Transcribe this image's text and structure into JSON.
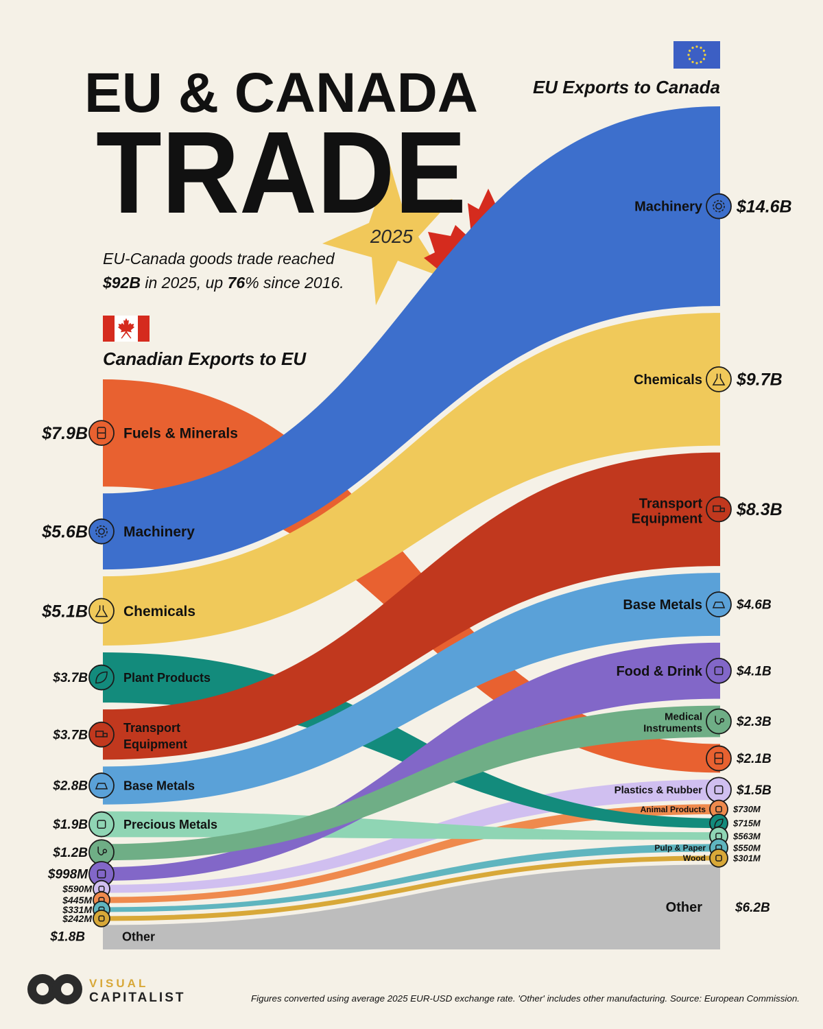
{
  "header": {
    "title_line1": "EU & CANADA",
    "title_line2": "TRADE",
    "year": "2025",
    "subtitle_line1": "EU-Canada goods trade reached",
    "subtitle_bold1": "$92B",
    "subtitle_mid": " in 2025, up ",
    "subtitle_bold2": "76",
    "subtitle_end": "% since 2016."
  },
  "left_heading": "Canadian Exports to EU",
  "right_heading": "EU Exports to Canada",
  "colors": {
    "background": "#f5f1e7",
    "fuels": "#e86130",
    "machinery": "#3d6fcc",
    "chemicals": "#f0c95a",
    "plant": "#138b7c",
    "transport": "#c1381e",
    "base_metals": "#5aa1d8",
    "precious_metals": "#8fd5b4",
    "medical": "#6fae86",
    "food": "#8267c8",
    "plastics": "#d0bff0",
    "animal": "#ef8a4d",
    "pulp": "#5fb5bf",
    "wood": "#d8a838",
    "other": "#bdbdbd",
    "eu_flag": "#3c5fc4",
    "ca_flag": "#d52b1e",
    "star": "#f1c85a"
  },
  "chart_data": {
    "type": "sankey",
    "left_label": "Canadian Exports to EU",
    "right_label": "EU Exports to Canada",
    "flows": [
      {
        "category": "Fuels & Minerals",
        "left_label": "Fuels & Minerals",
        "left_display": "$7.9B",
        "right_label": "",
        "right_display": "$2.1B",
        "left_value": 7.9,
        "right_value": 2.1,
        "color_key": "fuels",
        "icon": "oil-barrel-icon"
      },
      {
        "category": "Machinery",
        "left_label": "Machinery",
        "left_display": "$5.6B",
        "right_label": "Machinery",
        "right_display": "$14.6B",
        "left_value": 5.6,
        "right_value": 14.6,
        "color_key": "machinery",
        "icon": "gear-icon"
      },
      {
        "category": "Chemicals",
        "left_label": "Chemicals",
        "left_display": "$5.1B",
        "right_label": "Chemicals",
        "right_display": "$9.7B",
        "left_value": 5.1,
        "right_value": 9.7,
        "color_key": "chemicals",
        "icon": "flask-icon"
      },
      {
        "category": "Plant Products",
        "left_label": "Plant Products",
        "left_display": "$3.7B",
        "right_label": "",
        "right_display": "$715M",
        "left_value": 3.7,
        "right_value": 0.715,
        "color_key": "plant",
        "icon": "leaf-icon"
      },
      {
        "category": "Transport Equipment",
        "left_label": "Transport Equipment",
        "left_display": "$3.7B",
        "right_label": "Transport Equipment",
        "right_display": "$8.3B",
        "left_value": 3.7,
        "right_value": 8.3,
        "color_key": "transport",
        "icon": "truck-icon"
      },
      {
        "category": "Base Metals",
        "left_label": "Base Metals",
        "left_display": "$2.8B",
        "right_label": "Base Metals",
        "right_display": "$4.6B",
        "left_value": 2.8,
        "right_value": 4.6,
        "color_key": "base_metals",
        "icon": "ingot-icon"
      },
      {
        "category": "Precious Metals",
        "left_label": "Precious Metals",
        "left_display": "$1.9B",
        "right_label": "",
        "right_display": "$563M",
        "left_value": 1.9,
        "right_value": 0.563,
        "color_key": "precious_metals",
        "icon": "gem-icon"
      },
      {
        "category": "Medical Instruments",
        "left_label": "",
        "left_display": "$1.2B",
        "right_label": "Medical Instruments",
        "right_display": "$2.3B",
        "left_value": 1.2,
        "right_value": 2.3,
        "color_key": "medical",
        "icon": "stethoscope-icon"
      },
      {
        "category": "Food & Drink",
        "left_label": "",
        "left_display": "$998M",
        "right_label": "Food & Drink",
        "right_display": "$4.1B",
        "left_value": 0.998,
        "right_value": 4.1,
        "color_key": "food",
        "icon": "food-icon"
      },
      {
        "category": "Plastics & Rubber",
        "left_label": "",
        "left_display": "$590M",
        "right_label": "Plastics & Rubber",
        "right_display": "$1.5B",
        "left_value": 0.59,
        "right_value": 1.5,
        "color_key": "plastics",
        "icon": "bottle-icon"
      },
      {
        "category": "Animal Products",
        "left_label": "",
        "left_display": "$445M",
        "right_label": "Animal Products",
        "right_display": "$730M",
        "left_value": 0.445,
        "right_value": 0.73,
        "color_key": "animal",
        "icon": "cow-icon"
      },
      {
        "category": "Pulp & Paper",
        "left_label": "",
        "left_display": "$331M",
        "right_label": "Pulp & Paper",
        "right_display": "$550M",
        "left_value": 0.331,
        "right_value": 0.55,
        "color_key": "pulp",
        "icon": "paper-icon"
      },
      {
        "category": "Wood",
        "left_label": "",
        "left_display": "$242M",
        "right_label": "Wood",
        "right_display": "$301M",
        "left_value": 0.242,
        "right_value": 0.301,
        "color_key": "wood",
        "icon": "logs-icon"
      },
      {
        "category": "Other",
        "left_label": "Other",
        "left_display": "$1.8B",
        "right_label": "Other",
        "right_display": "$6.2B",
        "left_value": 1.8,
        "right_value": 6.2,
        "color_key": "other",
        "icon": ""
      }
    ],
    "right_order": [
      "Machinery",
      "Chemicals",
      "Transport Equipment",
      "Base Metals",
      "Food & Drink",
      "Medical Instruments",
      "Fuels & Minerals",
      "Plastics & Rubber",
      "Animal Products",
      "Plant Products",
      "Precious Metals",
      "Pulp & Paper",
      "Wood",
      "Other"
    ]
  },
  "footer": {
    "logo_line1": "VISUAL",
    "logo_line2": "CAPITALIST",
    "note": "Figures converted using average 2025 EUR-USD exchange rate. 'Other' includes other manufacturing. Source: European Commission."
  }
}
